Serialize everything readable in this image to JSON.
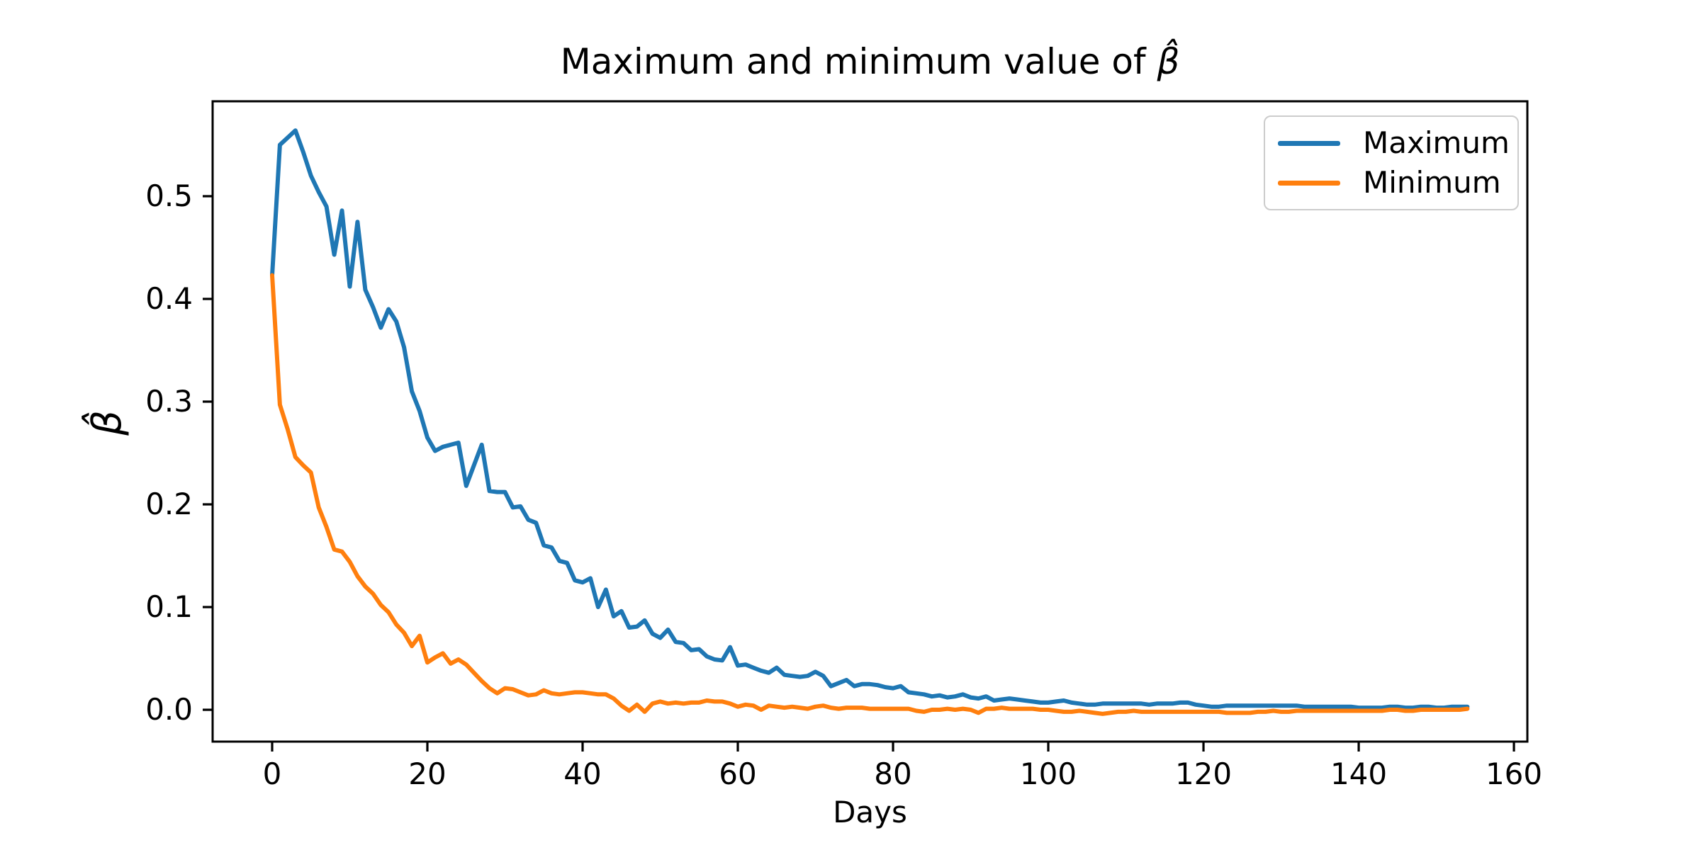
{
  "figure": {
    "title_text": "Maximum and minimum value of ",
    "title_math": "β̂",
    "xlabel": "Days",
    "ylabel": "β̂",
    "background": "#ffffff",
    "text_color": "#000000",
    "spine_color": "#000000",
    "legend_border_color": "#cccccc"
  },
  "chart_data": {
    "type": "line",
    "title": "Maximum and minimum value of β̂",
    "xlabel": "Days",
    "ylabel": "β̂",
    "grid": false,
    "legend": {
      "position": "upper right",
      "entries": [
        "Maximum",
        "Minimum"
      ]
    },
    "axes": {
      "xlim": [
        -7.67,
        161.73
      ],
      "ylim": [
        -0.031,
        0.5924
      ],
      "x_ticks": [
        0,
        20,
        40,
        60,
        80,
        100,
        120,
        140,
        160
      ],
      "y_ticks": [
        0.0,
        0.1,
        0.2,
        0.3,
        0.4,
        0.5
      ]
    },
    "x": [
      0,
      1,
      2,
      3,
      4,
      5,
      6,
      7,
      8,
      9,
      10,
      11,
      12,
      13,
      14,
      15,
      16,
      17,
      18,
      19,
      20,
      21,
      22,
      23,
      24,
      25,
      26,
      27,
      28,
      29,
      30,
      31,
      32,
      33,
      34,
      35,
      36,
      37,
      38,
      39,
      40,
      41,
      42,
      43,
      44,
      45,
      46,
      47,
      48,
      49,
      50,
      51,
      52,
      53,
      54,
      55,
      56,
      57,
      58,
      59,
      60,
      61,
      62,
      63,
      64,
      65,
      66,
      67,
      68,
      69,
      70,
      71,
      72,
      73,
      74,
      75,
      76,
      77,
      78,
      79,
      80,
      81,
      82,
      83,
      84,
      85,
      86,
      87,
      88,
      89,
      90,
      91,
      92,
      93,
      94,
      95,
      96,
      97,
      98,
      99,
      100,
      101,
      102,
      103,
      104,
      105,
      106,
      107,
      108,
      109,
      110,
      111,
      112,
      113,
      114,
      115,
      116,
      117,
      118,
      119,
      120,
      121,
      122,
      123,
      124,
      125,
      126,
      127,
      128,
      129,
      130,
      131,
      132,
      133,
      134,
      135,
      136,
      137,
      138,
      139,
      140,
      141,
      142,
      143,
      144,
      145,
      146,
      147,
      148,
      149,
      150,
      151,
      152,
      153,
      154
    ],
    "series": [
      {
        "name": "Maximum",
        "color": "#1f77b4",
        "values": [
          0.423,
          0.55,
          0.557,
          0.564,
          0.543,
          0.52,
          0.504,
          0.49,
          0.443,
          0.486,
          0.412,
          0.475,
          0.409,
          0.392,
          0.372,
          0.39,
          0.378,
          0.353,
          0.31,
          0.291,
          0.265,
          0.252,
          0.256,
          0.258,
          0.26,
          0.218,
          0.238,
          0.258,
          0.213,
          0.212,
          0.212,
          0.197,
          0.198,
          0.185,
          0.182,
          0.16,
          0.158,
          0.145,
          0.143,
          0.126,
          0.124,
          0.128,
          0.1,
          0.117,
          0.091,
          0.096,
          0.08,
          0.081,
          0.087,
          0.074,
          0.07,
          0.078,
          0.066,
          0.065,
          0.058,
          0.059,
          0.052,
          0.049,
          0.048,
          0.061,
          0.043,
          0.044,
          0.041,
          0.038,
          0.036,
          0.041,
          0.034,
          0.033,
          0.032,
          0.033,
          0.037,
          0.033,
          0.023,
          0.026,
          0.029,
          0.023,
          0.025,
          0.025,
          0.024,
          0.022,
          0.021,
          0.023,
          0.017,
          0.016,
          0.015,
          0.013,
          0.014,
          0.012,
          0.013,
          0.015,
          0.012,
          0.011,
          0.013,
          0.009,
          0.01,
          0.011,
          0.01,
          0.009,
          0.008,
          0.007,
          0.007,
          0.008,
          0.009,
          0.007,
          0.006,
          0.005,
          0.005,
          0.006,
          0.006,
          0.006,
          0.006,
          0.006,
          0.006,
          0.005,
          0.006,
          0.006,
          0.006,
          0.007,
          0.007,
          0.005,
          0.004,
          0.003,
          0.003,
          0.004,
          0.004,
          0.004,
          0.004,
          0.004,
          0.004,
          0.004,
          0.004,
          0.004,
          0.004,
          0.003,
          0.003,
          0.003,
          0.003,
          0.003,
          0.003,
          0.003,
          0.002,
          0.002,
          0.002,
          0.002,
          0.003,
          0.003,
          0.002,
          0.002,
          0.003,
          0.003,
          0.002,
          0.002,
          0.003,
          0.003,
          0.003
        ]
      },
      {
        "name": "Minimum",
        "color": "#ff7f0e",
        "values": [
          0.423,
          0.297,
          0.273,
          0.246,
          0.238,
          0.231,
          0.197,
          0.178,
          0.156,
          0.154,
          0.144,
          0.13,
          0.12,
          0.113,
          0.102,
          0.095,
          0.083,
          0.075,
          0.062,
          0.072,
          0.046,
          0.051,
          0.055,
          0.045,
          0.049,
          0.044,
          0.036,
          0.028,
          0.021,
          0.016,
          0.021,
          0.02,
          0.017,
          0.014,
          0.015,
          0.019,
          0.016,
          0.015,
          0.016,
          0.017,
          0.017,
          0.016,
          0.015,
          0.015,
          0.011,
          0.004,
          -0.001,
          0.005,
          -0.002,
          0.006,
          0.008,
          0.006,
          0.007,
          0.006,
          0.007,
          0.007,
          0.009,
          0.008,
          0.008,
          0.006,
          0.003,
          0.005,
          0.004,
          0.0,
          0.004,
          0.003,
          0.002,
          0.003,
          0.002,
          0.001,
          0.003,
          0.004,
          0.002,
          0.001,
          0.002,
          0.002,
          0.002,
          0.001,
          0.001,
          0.001,
          0.001,
          0.001,
          0.001,
          -0.001,
          -0.002,
          0.0,
          0.0,
          0.001,
          0.0,
          0.001,
          0.0,
          -0.003,
          0.001,
          0.001,
          0.002,
          0.001,
          0.001,
          0.001,
          0.001,
          0.0,
          0.0,
          -0.001,
          -0.002,
          -0.002,
          -0.001,
          -0.002,
          -0.003,
          -0.004,
          -0.003,
          -0.002,
          -0.002,
          -0.001,
          -0.002,
          -0.002,
          -0.002,
          -0.002,
          -0.002,
          -0.002,
          -0.002,
          -0.002,
          -0.002,
          -0.002,
          -0.002,
          -0.003,
          -0.003,
          -0.003,
          -0.003,
          -0.002,
          -0.002,
          -0.001,
          -0.002,
          -0.002,
          -0.001,
          -0.001,
          -0.001,
          -0.001,
          -0.001,
          -0.001,
          -0.001,
          -0.001,
          -0.001,
          -0.001,
          -0.001,
          -0.001,
          0.0,
          0.0,
          -0.001,
          -0.001,
          0.0,
          0.0,
          0.0,
          0.0,
          0.0,
          0.0,
          0.001
        ]
      }
    ]
  }
}
